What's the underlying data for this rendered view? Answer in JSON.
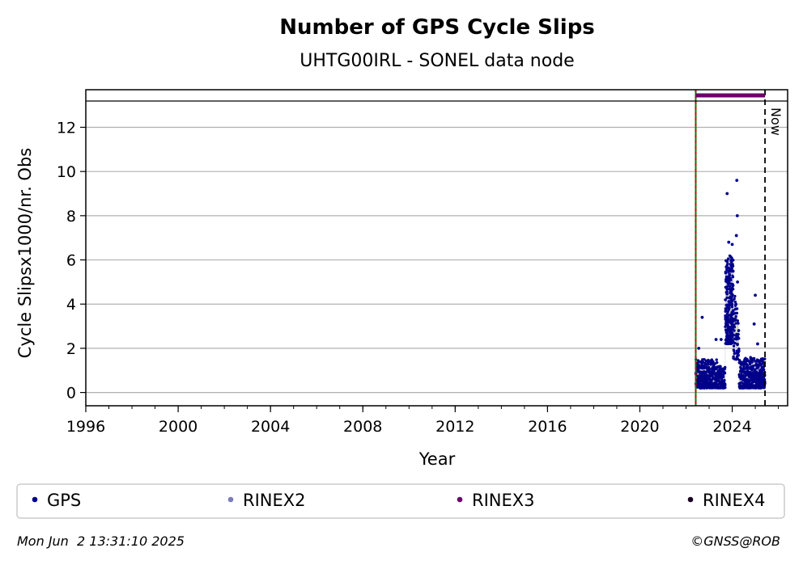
{
  "chart_data": {
    "type": "scatter",
    "title": "Number of GPS Cycle Slips",
    "subtitle": "UHTG00IRL - SONEL data node",
    "xlabel": "Year",
    "ylabel": "Cycle Slipsx1000/nr. Obs",
    "xlim": [
      1996,
      2026.4
    ],
    "ylim": [
      -0.6,
      13.7
    ],
    "x_ticks": [
      "1996",
      "2000",
      "2004",
      "2008",
      "2012",
      "2016",
      "2020",
      "2024"
    ],
    "y_ticks": [
      "0",
      "2",
      "4",
      "6",
      "8",
      "10",
      "12"
    ],
    "grid": "horizontal",
    "data_start": 2022.42,
    "now_year": 2025.42,
    "now_label": "Now",
    "rinex3_span": [
      2022.42,
      2025.42
    ],
    "series": [
      {
        "name": "GPS",
        "color": "#00008b",
        "clusters": [
          {
            "x_start": 2022.42,
            "x_end": 2023.35,
            "y_min": 0.2,
            "y_max": 1.5,
            "count": 300
          },
          {
            "x_start": 2023.35,
            "x_end": 2023.7,
            "y_min": 0.2,
            "y_max": 1.2,
            "count": 110
          },
          {
            "x_start": 2023.7,
            "x_end": 2024.05,
            "y_min": 2.2,
            "y_max": 6.2,
            "count": 260
          },
          {
            "x_start": 2024.05,
            "x_end": 2024.3,
            "y_min": 1.5,
            "y_max": 4.5,
            "count": 60
          },
          {
            "x_start": 2024.3,
            "x_end": 2025.42,
            "y_min": 0.2,
            "y_max": 1.6,
            "count": 380
          }
        ],
        "outliers": [
          {
            "x": 2022.7,
            "y": 3.4
          },
          {
            "x": 2022.55,
            "y": 2.0
          },
          {
            "x": 2023.3,
            "y": 2.4
          },
          {
            "x": 2023.52,
            "y": 2.4
          },
          {
            "x": 2023.78,
            "y": 9.0
          },
          {
            "x": 2023.85,
            "y": 6.8
          },
          {
            "x": 2024.0,
            "y": 6.7
          },
          {
            "x": 2024.2,
            "y": 9.6
          },
          {
            "x": 2024.22,
            "y": 8.0
          },
          {
            "x": 2024.18,
            "y": 7.1
          },
          {
            "x": 2024.23,
            "y": 5.0
          },
          {
            "x": 2025.0,
            "y": 4.4
          },
          {
            "x": 2024.95,
            "y": 3.1
          },
          {
            "x": 2025.1,
            "y": 2.2
          }
        ]
      }
    ],
    "legend": {
      "placement": "bottom",
      "entries": [
        {
          "label": "GPS",
          "color": "#00008b"
        },
        {
          "label": "RINEX2",
          "color": "#7b7bbf"
        },
        {
          "label": "RINEX3",
          "color": "#6b006b"
        },
        {
          "label": "RINEX4",
          "color": "#1a0020"
        }
      ]
    }
  },
  "footer": {
    "timestamp": "Mon Jun  2 13:31:10 2025",
    "copyright": "©GNSS@ROB"
  }
}
